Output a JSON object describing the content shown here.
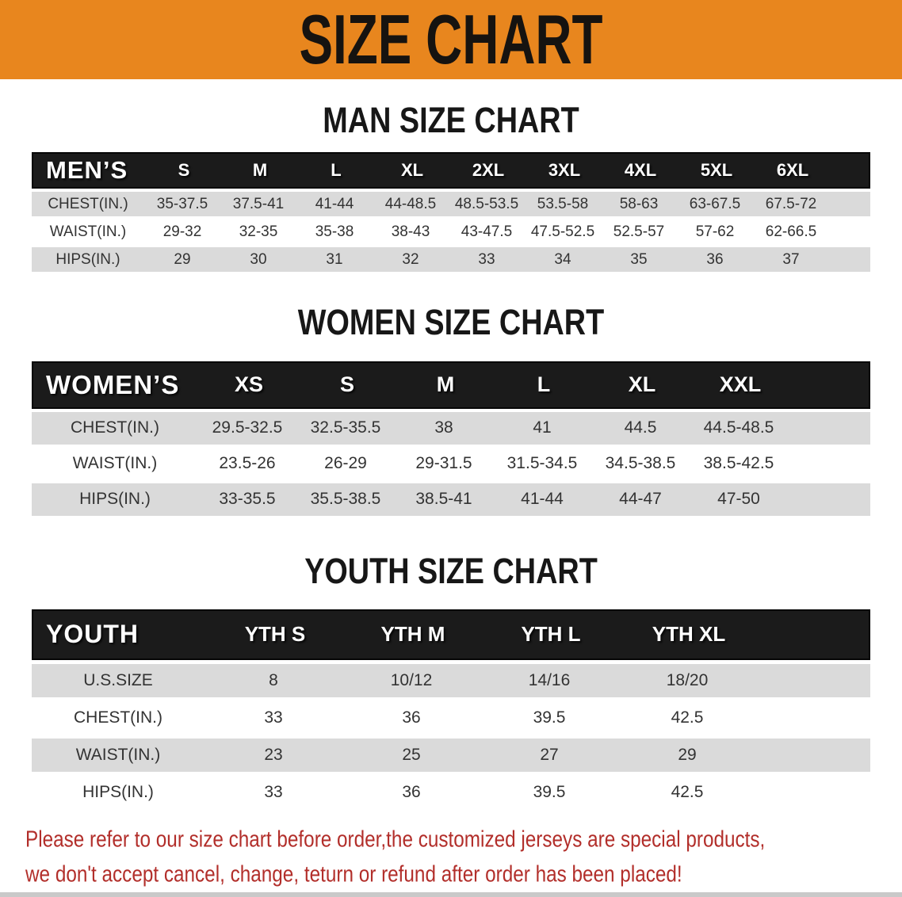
{
  "banner": {
    "title": "SIZE CHART"
  },
  "colors": {
    "banner_orange": "#E8861E",
    "header_black": "#1B1B1B",
    "row_gray": "#DADADA",
    "row_white": "#FFFFFF",
    "footer_red": "#B22E2A"
  },
  "sections": [
    {
      "heading": "MAN SIZE CHART",
      "table": {
        "label": "MEN’S",
        "columns": [
          "S",
          "M",
          "L",
          "XL",
          "2XL",
          "3XL",
          "4XL",
          "5XL",
          "6XL"
        ],
        "rows": [
          {
            "label": "CHEST(IN.)",
            "values": [
              "35-37.5",
              "37.5-41",
              "41-44",
              "44-48.5",
              "48.5-53.5",
              "53.5-58",
              "58-63",
              "63-67.5",
              "67.5-72"
            ]
          },
          {
            "label": "WAIST(IN.)",
            "values": [
              "29-32",
              "32-35",
              "35-38",
              "38-43",
              "43-47.5",
              "47.5-52.5",
              "52.5-57",
              "57-62",
              "62-66.5"
            ]
          },
          {
            "label": "HIPS(IN.)",
            "values": [
              "29",
              "30",
              "31",
              "32",
              "33",
              "34",
              "35",
              "36",
              "37"
            ]
          }
        ]
      }
    },
    {
      "heading": "WOMEN SIZE CHART",
      "table": {
        "label": "WOMEN’S",
        "columns": [
          "XS",
          "S",
          "M",
          "L",
          "XL",
          "XXL"
        ],
        "rows": [
          {
            "label": "CHEST(IN.)",
            "values": [
              "29.5-32.5",
              "32.5-35.5",
              "38",
              "41",
              "44.5",
              "44.5-48.5"
            ]
          },
          {
            "label": "WAIST(IN.)",
            "values": [
              "23.5-26",
              "26-29",
              "29-31.5",
              "31.5-34.5",
              "34.5-38.5",
              "38.5-42.5"
            ]
          },
          {
            "label": "HIPS(IN.)",
            "values": [
              "33-35.5",
              "35.5-38.5",
              "38.5-41",
              "41-44",
              "44-47",
              "47-50"
            ]
          }
        ]
      }
    },
    {
      "heading": "YOUTH SIZE CHART",
      "table": {
        "label": "YOUTH",
        "columns": [
          "YTH S",
          "YTH M",
          "YTH L",
          "YTH XL"
        ],
        "rows": [
          {
            "label": "U.S.SIZE",
            "values": [
              "8",
              "10/12",
              "14/16",
              "18/20"
            ]
          },
          {
            "label": "CHEST(IN.)",
            "values": [
              "33",
              "36",
              "39.5",
              "42.5"
            ]
          },
          {
            "label": "WAIST(IN.)",
            "values": [
              "23",
              "25",
              "27",
              "29"
            ]
          },
          {
            "label": "HIPS(IN.)",
            "values": [
              "33",
              "36",
              "39.5",
              "42.5"
            ]
          }
        ]
      }
    }
  ],
  "footer": {
    "lines": [
      "Please refer to our size chart before order,the customized jerseys are special products,",
      "we don't accept cancel, change, teturn or refund after order has been placed!"
    ]
  }
}
